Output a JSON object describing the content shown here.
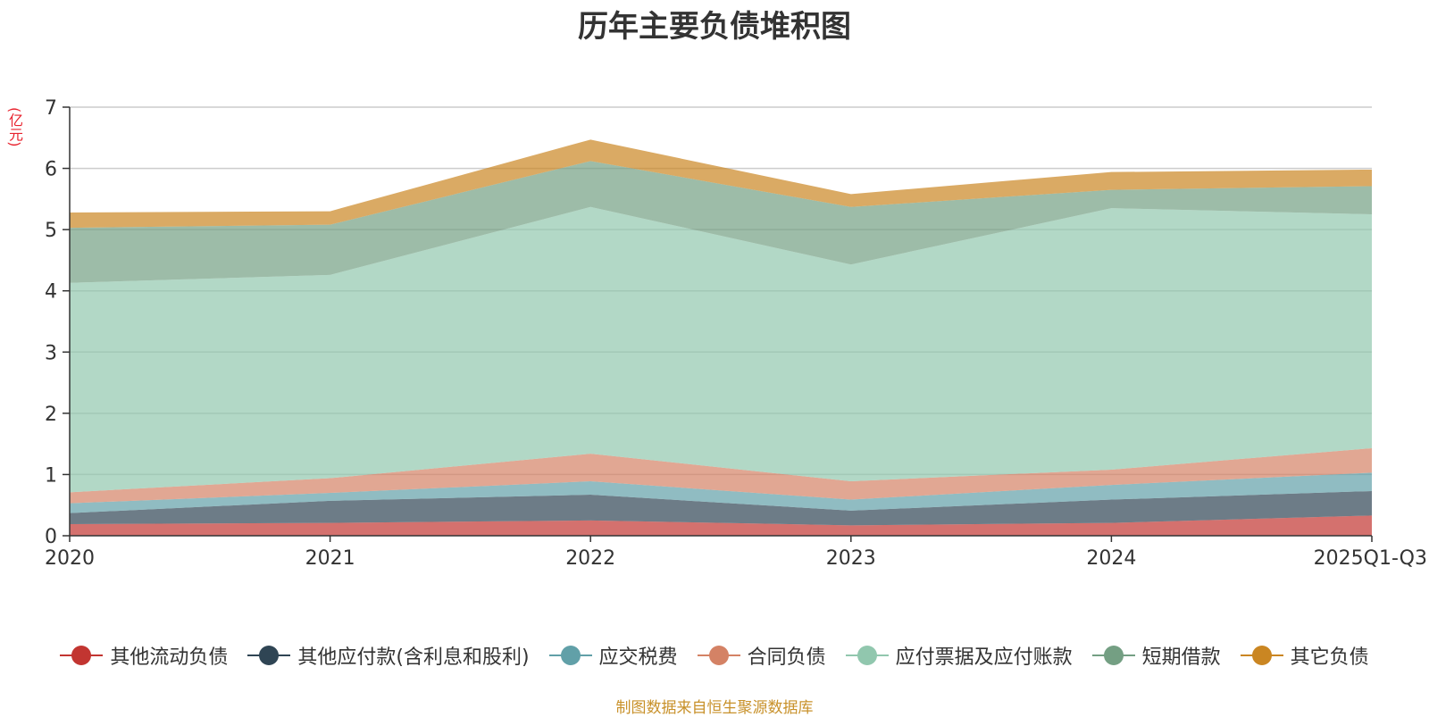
{
  "chart_data": {
    "type": "area",
    "stacked": true,
    "title": "历年主要负债堆积图",
    "ylabel": "(亿元)",
    "xlabel": "",
    "ylim": [
      0,
      7
    ],
    "yticks": [
      "0",
      "1",
      "2",
      "3",
      "4",
      "5",
      "6",
      "7"
    ],
    "categories": [
      "2020",
      "2021",
      "2022",
      "2023",
      "2024",
      "2025Q1-Q3"
    ],
    "series": [
      {
        "name": "其他流动负债",
        "color": "#c23531",
        "values": [
          0.19,
          0.21,
          0.25,
          0.17,
          0.21,
          0.33
        ]
      },
      {
        "name": "其他应付款(含利息和股利)",
        "color": "#2f4554",
        "values": [
          0.18,
          0.36,
          0.42,
          0.24,
          0.38,
          0.4
        ]
      },
      {
        "name": "应交税费",
        "color": "#61a0a8",
        "values": [
          0.16,
          0.13,
          0.22,
          0.18,
          0.24,
          0.3
        ]
      },
      {
        "name": "合同负债",
        "color": "#d48265",
        "values": [
          0.18,
          0.24,
          0.45,
          0.3,
          0.25,
          0.4
        ]
      },
      {
        "name": "应付票据及应付账款",
        "color": "#91c7ae",
        "values": [
          3.42,
          3.32,
          4.03,
          3.54,
          4.27,
          3.82
        ]
      },
      {
        "name": "短期借款",
        "color": "#749f83",
        "values": [
          0.9,
          0.82,
          0.75,
          0.94,
          0.3,
          0.46
        ]
      },
      {
        "name": "其它负债",
        "color": "#ca8622",
        "values": [
          0.25,
          0.22,
          0.35,
          0.21,
          0.29,
          0.27
        ]
      }
    ],
    "grid": true,
    "legend_position": "bottom"
  },
  "source_note": "制图数据来自恒生聚源数据库"
}
